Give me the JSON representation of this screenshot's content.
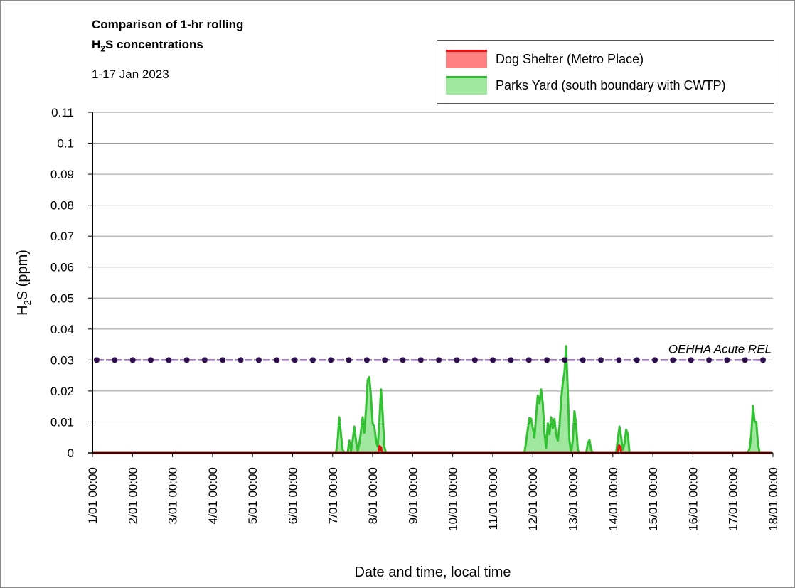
{
  "header": {
    "title_line1": "Comparison of 1-hr rolling",
    "title_line2_prefix": "H",
    "title_line2_sub": "2",
    "title_line2_suffix": "S concentrations",
    "subtitle": "1-17 Jan 2023"
  },
  "chart_data": {
    "type": "area",
    "ylabel_prefix": "H",
    "ylabel_sub": "2",
    "ylabel_suffix": "S (ppm)",
    "xlabel": "Date and time, local time",
    "ylim": [
      0,
      0.11
    ],
    "yticks": [
      0,
      0.01,
      0.02,
      0.03,
      0.04,
      0.05,
      0.06,
      0.07,
      0.08,
      0.09,
      0.1,
      0.11
    ],
    "ytick_labels": [
      "0",
      "0.01",
      "0.02",
      "0.03",
      "0.04",
      "0.05",
      "0.06",
      "0.07",
      "0.08",
      "0.09",
      "0.1",
      "0.11"
    ],
    "xlim": [
      "2023-01-01 00:00",
      "2023-01-18 00:00"
    ],
    "xtick_labels": [
      "1/01 00:00",
      "2/01 00:00",
      "3/01 00:00",
      "4/01 00:00",
      "5/01 00:00",
      "6/01 00:00",
      "7/01 00:00",
      "8/01 00:00",
      "9/01 00:00",
      "10/01 00:00",
      "11/01 00:00",
      "12/01 00:00",
      "13/01 00:00",
      "14/01 00:00",
      "15/01 00:00",
      "16/01 00:00",
      "17/01 00:00",
      "18/01 00:00"
    ],
    "grid": "horizontal",
    "legend_position": "top-right",
    "series": [
      {
        "name": "Dog Shelter (Metro Place)",
        "line_color": "#e81010",
        "fill_color": "#ff8080",
        "points": [
          [
            "2023-01-01 00:00",
            0
          ],
          [
            "2023-01-08 03:30",
            0
          ],
          [
            "2023-01-08 04:00",
            0.0022
          ],
          [
            "2023-01-08 05:00",
            0.0018
          ],
          [
            "2023-01-08 05:30",
            0
          ],
          [
            "2023-01-14 03:00",
            0
          ],
          [
            "2023-01-14 03:40",
            0.0024
          ],
          [
            "2023-01-14 04:30",
            0.002
          ],
          [
            "2023-01-14 05:00",
            0
          ],
          [
            "2023-01-17 23:00",
            0
          ]
        ]
      },
      {
        "name": "Parks Yard (south boundary with CWTP)",
        "line_color": "#33c133",
        "fill_color": "#a0e8a0",
        "points": [
          [
            "2023-01-01 00:00",
            0
          ],
          [
            "2023-01-07 02:00",
            0
          ],
          [
            "2023-01-07 03:00",
            0.004
          ],
          [
            "2023-01-07 04:00",
            0.0115
          ],
          [
            "2023-01-07 05:00",
            0.006
          ],
          [
            "2023-01-07 06:00",
            0.001
          ],
          [
            "2023-01-07 07:00",
            0
          ],
          [
            "2023-01-07 09:00",
            0
          ],
          [
            "2023-01-07 10:00",
            0.004
          ],
          [
            "2023-01-07 11:00",
            0.0005
          ],
          [
            "2023-01-07 12:00",
            0.004
          ],
          [
            "2023-01-07 13:00",
            0.0085
          ],
          [
            "2023-01-07 14:00",
            0.004
          ],
          [
            "2023-01-07 15:00",
            0.0005
          ],
          [
            "2023-01-07 16:00",
            0.003
          ],
          [
            "2023-01-07 17:00",
            0.007
          ],
          [
            "2023-01-07 18:00",
            0.0115
          ],
          [
            "2023-01-07 19:00",
            0.0065
          ],
          [
            "2023-01-07 20:00",
            0.014
          ],
          [
            "2023-01-07 21:00",
            0.0235
          ],
          [
            "2023-01-07 22:00",
            0.0245
          ],
          [
            "2023-01-07 23:00",
            0.018
          ],
          [
            "2023-01-08 00:00",
            0.0095
          ],
          [
            "2023-01-08 01:00",
            0.0085
          ],
          [
            "2023-01-08 02:00",
            0.004
          ],
          [
            "2023-01-08 03:00",
            0.002
          ],
          [
            "2023-01-08 04:00",
            0.01
          ],
          [
            "2023-01-08 05:00",
            0.0205
          ],
          [
            "2023-01-08 06:00",
            0.0125
          ],
          [
            "2023-01-08 07:00",
            0.002
          ],
          [
            "2023-01-08 08:00",
            0
          ],
          [
            "2023-01-11 19:00",
            0
          ],
          [
            "2023-01-11 20:00",
            0.0035
          ],
          [
            "2023-01-11 21:00",
            0.0075
          ],
          [
            "2023-01-11 22:00",
            0.0113
          ],
          [
            "2023-01-11 23:00",
            0.011
          ],
          [
            "2023-01-12 00:00",
            0.008
          ],
          [
            "2023-01-12 01:00",
            0.005
          ],
          [
            "2023-01-12 02:00",
            0.012
          ],
          [
            "2023-01-12 03:00",
            0.0185
          ],
          [
            "2023-01-12 04:00",
            0.016
          ],
          [
            "2023-01-12 05:00",
            0.0205
          ],
          [
            "2023-01-12 06:00",
            0.016
          ],
          [
            "2023-01-12 07:00",
            0.0065
          ],
          [
            "2023-01-12 08:00",
            0.0015
          ],
          [
            "2023-01-12 09:00",
            0.0095
          ],
          [
            "2023-01-12 10:00",
            0.006
          ],
          [
            "2023-01-12 11:00",
            0.0115
          ],
          [
            "2023-01-12 12:00",
            0.008
          ],
          [
            "2023-01-12 13:00",
            0.011
          ],
          [
            "2023-01-12 14:00",
            0.006
          ],
          [
            "2023-01-12 15:00",
            0.004
          ],
          [
            "2023-01-12 16:00",
            0.0085
          ],
          [
            "2023-01-12 17:00",
            0.017
          ],
          [
            "2023-01-12 18:00",
            0.0225
          ],
          [
            "2023-01-12 19:00",
            0.026
          ],
          [
            "2023-01-12 20:00",
            0.0345
          ],
          [
            "2023-01-12 21:00",
            0.02
          ],
          [
            "2023-01-12 22:00",
            0.004
          ],
          [
            "2023-01-12 23:00",
            0
          ],
          [
            "2023-01-13 00:00",
            0.004
          ],
          [
            "2023-01-13 01:00",
            0.0135
          ],
          [
            "2023-01-13 02:00",
            0.009
          ],
          [
            "2023-01-13 03:00",
            0.001
          ],
          [
            "2023-01-13 04:00",
            0
          ],
          [
            "2023-01-13 08:00",
            0
          ],
          [
            "2023-01-13 09:00",
            0.003
          ],
          [
            "2023-01-13 10:00",
            0.0042
          ],
          [
            "2023-01-13 11:00",
            0.001
          ],
          [
            "2023-01-13 12:00",
            0
          ],
          [
            "2023-01-14 02:00",
            0
          ],
          [
            "2023-01-14 03:00",
            0.0045
          ],
          [
            "2023-01-14 04:00",
            0.0085
          ],
          [
            "2023-01-14 05:00",
            0.005
          ],
          [
            "2023-01-14 06:00",
            0.001
          ],
          [
            "2023-01-14 07:00",
            0.003
          ],
          [
            "2023-01-14 08:00",
            0.0075
          ],
          [
            "2023-01-14 09:00",
            0.006
          ],
          [
            "2023-01-14 10:00",
            0
          ],
          [
            "2023-01-17 09:00",
            0
          ],
          [
            "2023-01-17 10:00",
            0.0015
          ],
          [
            "2023-01-17 11:00",
            0.006
          ],
          [
            "2023-01-17 12:00",
            0.0152
          ],
          [
            "2023-01-17 13:00",
            0.01
          ],
          [
            "2023-01-17 14:00",
            0.01
          ],
          [
            "2023-01-17 15:00",
            0.003
          ],
          [
            "2023-01-17 16:00",
            0
          ],
          [
            "2023-01-17 23:00",
            0
          ]
        ]
      }
    ],
    "reference_line": {
      "label": "OEHHA Acute REL",
      "value": 0.03,
      "color": "#5a2a82",
      "marker_color": "#2e0f4e"
    }
  }
}
